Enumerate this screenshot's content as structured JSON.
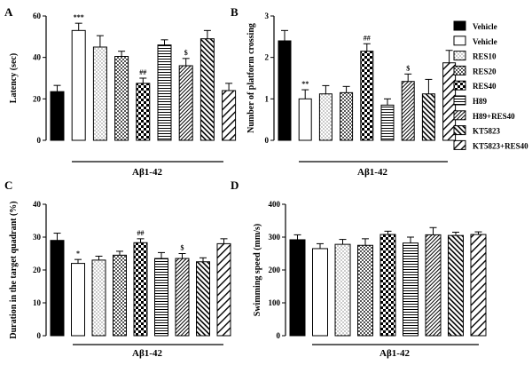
{
  "chart_data": [
    {
      "type": "bar",
      "panel": "A",
      "ylabel": "Latency (sec)",
      "ylim": [
        0,
        60
      ],
      "yticks": [
        "0",
        "20",
        "40",
        "60"
      ],
      "group_label": "Aβ1-42",
      "categories": [
        "Vehicle",
        "Vehicle",
        "RES10",
        "RES20",
        "RES40",
        "H89",
        "H89+RES40",
        "KT5823",
        "KT5823+RES40"
      ],
      "values": [
        23.5,
        53,
        45,
        40.5,
        27.5,
        46,
        36,
        49,
        24
      ],
      "errors": [
        3,
        3.5,
        5.5,
        2.5,
        2.5,
        2.5,
        3.5,
        4,
        3.5
      ],
      "annotations": [
        "",
        "***",
        "",
        "",
        "##",
        "",
        "$",
        "",
        ""
      ]
    },
    {
      "type": "bar",
      "panel": "B",
      "ylabel": "Number of platform crossing",
      "ylim": [
        0,
        3
      ],
      "yticks": [
        "0",
        "1",
        "2",
        "3"
      ],
      "group_label": "Aβ1-42",
      "categories": [
        "Vehicle",
        "Vehicle",
        "RES10",
        "RES20",
        "RES40",
        "H89",
        "H89+RES40",
        "KT5823",
        "KT5823+RES40"
      ],
      "values": [
        2.4,
        1.0,
        1.12,
        1.15,
        2.15,
        0.85,
        1.42,
        1.12,
        1.87
      ],
      "errors": [
        0.25,
        0.22,
        0.2,
        0.15,
        0.18,
        0.15,
        0.18,
        0.35,
        0.3
      ],
      "annotations": [
        "",
        "**",
        "",
        "",
        "##",
        "",
        "$",
        "",
        ""
      ]
    },
    {
      "type": "bar",
      "panel": "C",
      "ylabel": "Duration in the target quadrant (%)",
      "ylim": [
        0,
        40
      ],
      "yticks": [
        "0",
        "10",
        "20",
        "30",
        "40"
      ],
      "group_label": "Aβ1-42",
      "categories": [
        "Vehicle",
        "Vehicle",
        "RES10",
        "RES20",
        "RES40",
        "H89",
        "H89+RES40",
        "KT5823",
        "KT5823+RES40"
      ],
      "values": [
        29,
        22,
        23,
        24.5,
        28.3,
        23.5,
        23.5,
        22.5,
        28
      ],
      "errors": [
        2.2,
        1.2,
        1.2,
        1.2,
        1.2,
        1.8,
        1.5,
        1.2,
        1.5
      ],
      "annotations": [
        "",
        "*",
        "",
        "",
        "##",
        "",
        "$",
        "",
        ""
      ]
    },
    {
      "type": "bar",
      "panel": "D",
      "ylabel": "Swimming speed (mm/s)",
      "ylim": [
        0,
        400
      ],
      "yticks": [
        "0",
        "100",
        "200",
        "300",
        "400"
      ],
      "group_label": "Aβ1-42",
      "categories": [
        "Vehicle",
        "Vehicle",
        "RES10",
        "RES20",
        "RES40",
        "H89",
        "H89+RES40",
        "KT5823",
        "KT5823+RES40"
      ],
      "values": [
        292,
        265,
        278,
        275,
        308,
        282,
        307,
        305,
        308
      ],
      "errors": [
        15,
        15,
        15,
        20,
        10,
        18,
        22,
        10,
        8
      ],
      "annotations": [
        "",
        "",
        "",
        "",
        "",
        "",
        "",
        "",
        ""
      ]
    }
  ],
  "legend": {
    "entries": [
      "Vehicle",
      "Vehicle",
      "RES10",
      "RES20",
      "RES40",
      "H89",
      "H89+RES40",
      "KT5823",
      "KT5823+RES40"
    ],
    "placement": "right"
  },
  "colors": {
    "ink": "#000000",
    "background": "#ffffff"
  },
  "bar_patterns": [
    "solid-black",
    "white",
    "dots",
    "grid",
    "checker",
    "hstripes",
    "diag-dense",
    "diag-reverse",
    "diag-wide"
  ]
}
